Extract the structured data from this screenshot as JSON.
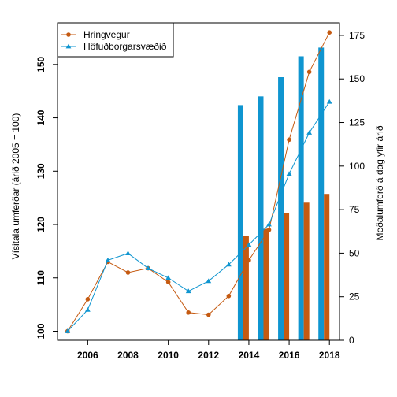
{
  "chart_data": {
    "type": "bar+line",
    "x": [
      2005,
      2006,
      2007,
      2008,
      2009,
      2010,
      2011,
      2012,
      2013,
      2014,
      2015,
      2016,
      2017,
      2018
    ],
    "x_ticks": [
      2006,
      2008,
      2010,
      2012,
      2014,
      2016,
      2018
    ],
    "xlim": [
      2004.5,
      2018.5
    ],
    "left_axis": {
      "label": "Vísitala umferðar (árið 2005 = 100)",
      "ylim": [
        98.3,
        157.8
      ],
      "ticks": [
        100,
        110,
        120,
        130,
        140,
        150
      ]
    },
    "right_axis": {
      "label": "Meðalumferð á dag yfir árið",
      "ylim": [
        0,
        182.2
      ],
      "ticks": [
        0,
        25,
        50,
        75,
        100,
        125,
        150,
        175
      ]
    },
    "lines": [
      {
        "name": "Hringvegur",
        "color": "#c55a11",
        "marker": "circle",
        "values": [
          100,
          106,
          113,
          111,
          111.8,
          109.2,
          103.5,
          103.1,
          106.6,
          113.3,
          119,
          135.9,
          148.6,
          156
        ]
      },
      {
        "name": "Höfuðborgarsvæðið",
        "color": "#0f95d0",
        "marker": "triangle",
        "values": [
          100,
          104,
          113.3,
          114.6,
          111.8,
          110,
          107.5,
          109.4,
          112.5,
          116.2,
          120,
          129.5,
          137.2,
          143
        ]
      }
    ],
    "bars": [
      {
        "year": 2014,
        "blue": 135,
        "orange": 60
      },
      {
        "year": 2015,
        "blue": 140,
        "orange": 64
      },
      {
        "year": 2016,
        "blue": 151,
        "orange": 73
      },
      {
        "year": 2017,
        "blue": 163,
        "orange": 79
      },
      {
        "year": 2018,
        "blue": 168,
        "orange": 84
      }
    ],
    "bar_colors": {
      "blue": "#0f95d0",
      "orange": "#c55a11"
    },
    "legend": {
      "placement": "top-left",
      "entries": [
        "Hringvegur",
        "Höfuðborgarsvæðið"
      ]
    }
  }
}
